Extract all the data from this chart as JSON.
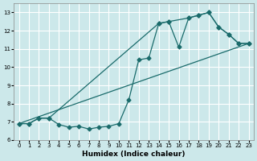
{
  "xlabel": "Humidex (Indice chaleur)",
  "background_color": "#cce8ea",
  "grid_color": "#ffffff",
  "line_color": "#1a6b6b",
  "xlim": [
    -0.5,
    23.5
  ],
  "ylim": [
    6.0,
    13.5
  ],
  "yticks": [
    6,
    7,
    8,
    9,
    10,
    11,
    12,
    13
  ],
  "xticks": [
    0,
    1,
    2,
    3,
    4,
    5,
    6,
    7,
    8,
    9,
    10,
    11,
    12,
    13,
    14,
    15,
    16,
    17,
    18,
    19,
    20,
    21,
    22,
    23
  ],
  "line1_x": [
    0,
    23
  ],
  "line1_y": [
    6.9,
    11.3
  ],
  "line2_x": [
    0,
    1,
    2,
    3,
    4,
    5,
    6,
    7,
    8,
    9,
    10,
    11,
    12,
    13,
    14,
    15,
    16,
    17,
    18,
    19,
    20,
    21,
    22,
    23
  ],
  "line2_y": [
    6.9,
    6.9,
    7.2,
    7.2,
    6.85,
    6.7,
    6.75,
    6.6,
    6.7,
    6.75,
    6.9,
    8.2,
    10.4,
    10.5,
    12.4,
    12.5,
    11.1,
    12.7,
    12.85,
    13.0,
    12.2,
    11.8,
    11.3,
    11.3
  ],
  "line3_x": [
    0,
    1,
    2,
    3,
    14,
    15,
    17,
    18,
    19,
    20,
    21,
    22,
    23
  ],
  "line3_y": [
    6.9,
    6.9,
    7.2,
    7.2,
    12.4,
    12.5,
    12.7,
    12.85,
    13.0,
    12.2,
    11.8,
    11.3,
    11.3
  ]
}
